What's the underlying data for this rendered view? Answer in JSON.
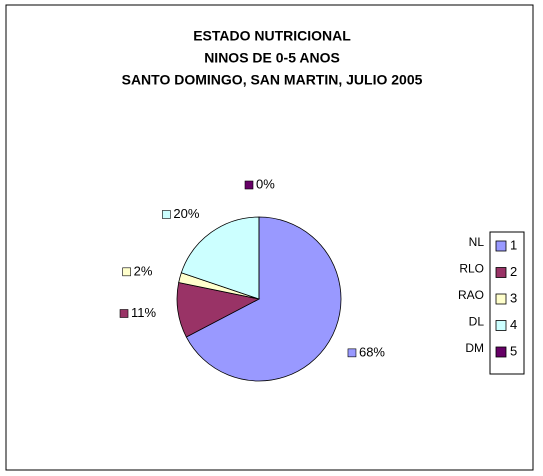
{
  "chart_data": {
    "type": "pie",
    "title": [
      "ESTADO NUTRICIONAL",
      "NINOS DE 0-5 ANOS",
      "SANTO DOMINGO, SAN MARTIN, JULIO 2005"
    ],
    "categories": [
      "1",
      "2",
      "3",
      "4",
      "5"
    ],
    "annotations": [
      "NL",
      "RLO",
      "RAO",
      "DL",
      "DM"
    ],
    "values": [
      68,
      11,
      2,
      20,
      0
    ],
    "value_labels": [
      "68%",
      "11%",
      "2%",
      "20%",
      "0%"
    ],
    "colors": [
      "#9999ff",
      "#993366",
      "#ffffcc",
      "#ccffff",
      "#660066"
    ],
    "legend": "right"
  }
}
